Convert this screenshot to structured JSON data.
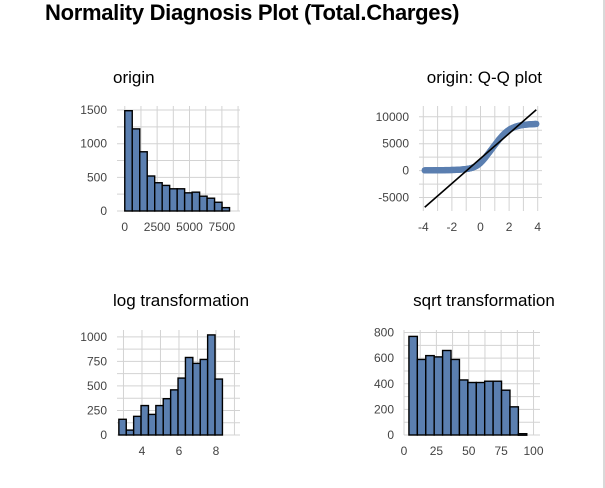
{
  "title": "Normality Diagnosis Plot (Total.Charges)",
  "colors": {
    "bar_fill": "#5B7FB0",
    "bar_stroke": "#000000",
    "points": "#5B7FB0",
    "line": "#000000",
    "grid": "#d3d3d3"
  },
  "chart_data": [
    {
      "type": "bar",
      "subtype": "histogram",
      "title": "origin",
      "bin_start": 0,
      "bin_width": 578,
      "values": [
        1490,
        1220,
        880,
        520,
        420,
        380,
        330,
        330,
        270,
        280,
        220,
        190,
        130,
        50
      ],
      "xlim": [
        -600,
        8900
      ],
      "ylim": [
        0,
        1560
      ],
      "xticks": [
        0,
        2500,
        5000,
        7500
      ],
      "xtick_labels": [
        "0",
        "2500",
        "5000",
        "7500"
      ],
      "yticks": [
        0,
        500,
        1000,
        1500
      ],
      "ytick_labels": [
        "0",
        "500",
        "1000",
        "1500"
      ],
      "grid": true
    },
    {
      "type": "scatter",
      "subtype": "qq",
      "title": "origin: Q-Q plot",
      "xlim": [
        -4.3,
        4.3
      ],
      "ylim": [
        -7500,
        12000
      ],
      "xticks": [
        -4,
        -2,
        0,
        2,
        4
      ],
      "xtick_labels": [
        "-4",
        "-2",
        "0",
        "2",
        "4"
      ],
      "yticks": [
        -5000,
        0,
        5000,
        10000
      ],
      "ytick_labels": [
        "-5000",
        "0",
        "5000",
        "10000"
      ],
      "points": [
        [
          -3.9,
          50
        ],
        [
          -3.7,
          55
        ],
        [
          -3.5,
          60
        ],
        [
          -3.3,
          65
        ],
        [
          -3.1,
          70
        ],
        [
          -2.9,
          75
        ],
        [
          -2.7,
          80
        ],
        [
          -2.5,
          90
        ],
        [
          -2.3,
          100
        ],
        [
          -2.1,
          110
        ],
        [
          -1.9,
          120
        ],
        [
          -1.7,
          140
        ],
        [
          -1.5,
          170
        ],
        [
          -1.3,
          210
        ],
        [
          -1.1,
          260
        ],
        [
          -0.9,
          330
        ],
        [
          -0.7,
          440
        ],
        [
          -0.5,
          600
        ],
        [
          -0.3,
          850
        ],
        [
          -0.1,
          1200
        ],
        [
          0.1,
          1700
        ],
        [
          0.3,
          2300
        ],
        [
          0.5,
          3000
        ],
        [
          0.7,
          3700
        ],
        [
          0.9,
          4400
        ],
        [
          1.1,
          5100
        ],
        [
          1.3,
          5800
        ],
        [
          1.5,
          6400
        ],
        [
          1.7,
          6950
        ],
        [
          1.9,
          7400
        ],
        [
          2.1,
          7750
        ],
        [
          2.3,
          8000
        ],
        [
          2.5,
          8200
        ],
        [
          2.7,
          8350
        ],
        [
          2.9,
          8450
        ],
        [
          3.1,
          8520
        ],
        [
          3.3,
          8570
        ],
        [
          3.5,
          8610
        ],
        [
          3.7,
          8640
        ],
        [
          3.9,
          8670
        ]
      ],
      "line": {
        "x": [
          -3.9,
          3.9
        ],
        "y": [
          -6800,
          11300
        ]
      },
      "grid": true
    },
    {
      "type": "bar",
      "subtype": "histogram",
      "title": "log transformation",
      "bin_start": 2.75,
      "bin_width": 0.4,
      "values": [
        160,
        50,
        190,
        300,
        210,
        300,
        370,
        460,
        580,
        790,
        730,
        770,
        1020,
        570
      ],
      "xlim": [
        2.65,
        9.3
      ],
      "ylim": [
        0,
        1070
      ],
      "xticks": [
        4,
        6,
        8
      ],
      "xtick_labels": [
        "4",
        "6",
        "8"
      ],
      "yticks": [
        0,
        250,
        500,
        750,
        1000
      ],
      "ytick_labels": [
        "0",
        "250",
        "500",
        "750",
        "1000"
      ],
      "grid": true
    },
    {
      "type": "bar",
      "subtype": "histogram",
      "title": "sqrt transformation",
      "bin_start": 3.8,
      "bin_width": 6.5,
      "values": [
        770,
        590,
        620,
        610,
        660,
        590,
        430,
        410,
        410,
        420,
        420,
        350,
        220,
        10
      ],
      "xlim": [
        0,
        105
      ],
      "ylim": [
        0,
        820
      ],
      "xticks": [
        0,
        25,
        50,
        75,
        100
      ],
      "xtick_labels": [
        "0",
        "25",
        "50",
        "75",
        "100"
      ],
      "yticks": [
        0,
        200,
        400,
        600,
        800
      ],
      "ytick_labels": [
        "0",
        "200",
        "400",
        "600",
        "800"
      ],
      "grid": true
    }
  ]
}
